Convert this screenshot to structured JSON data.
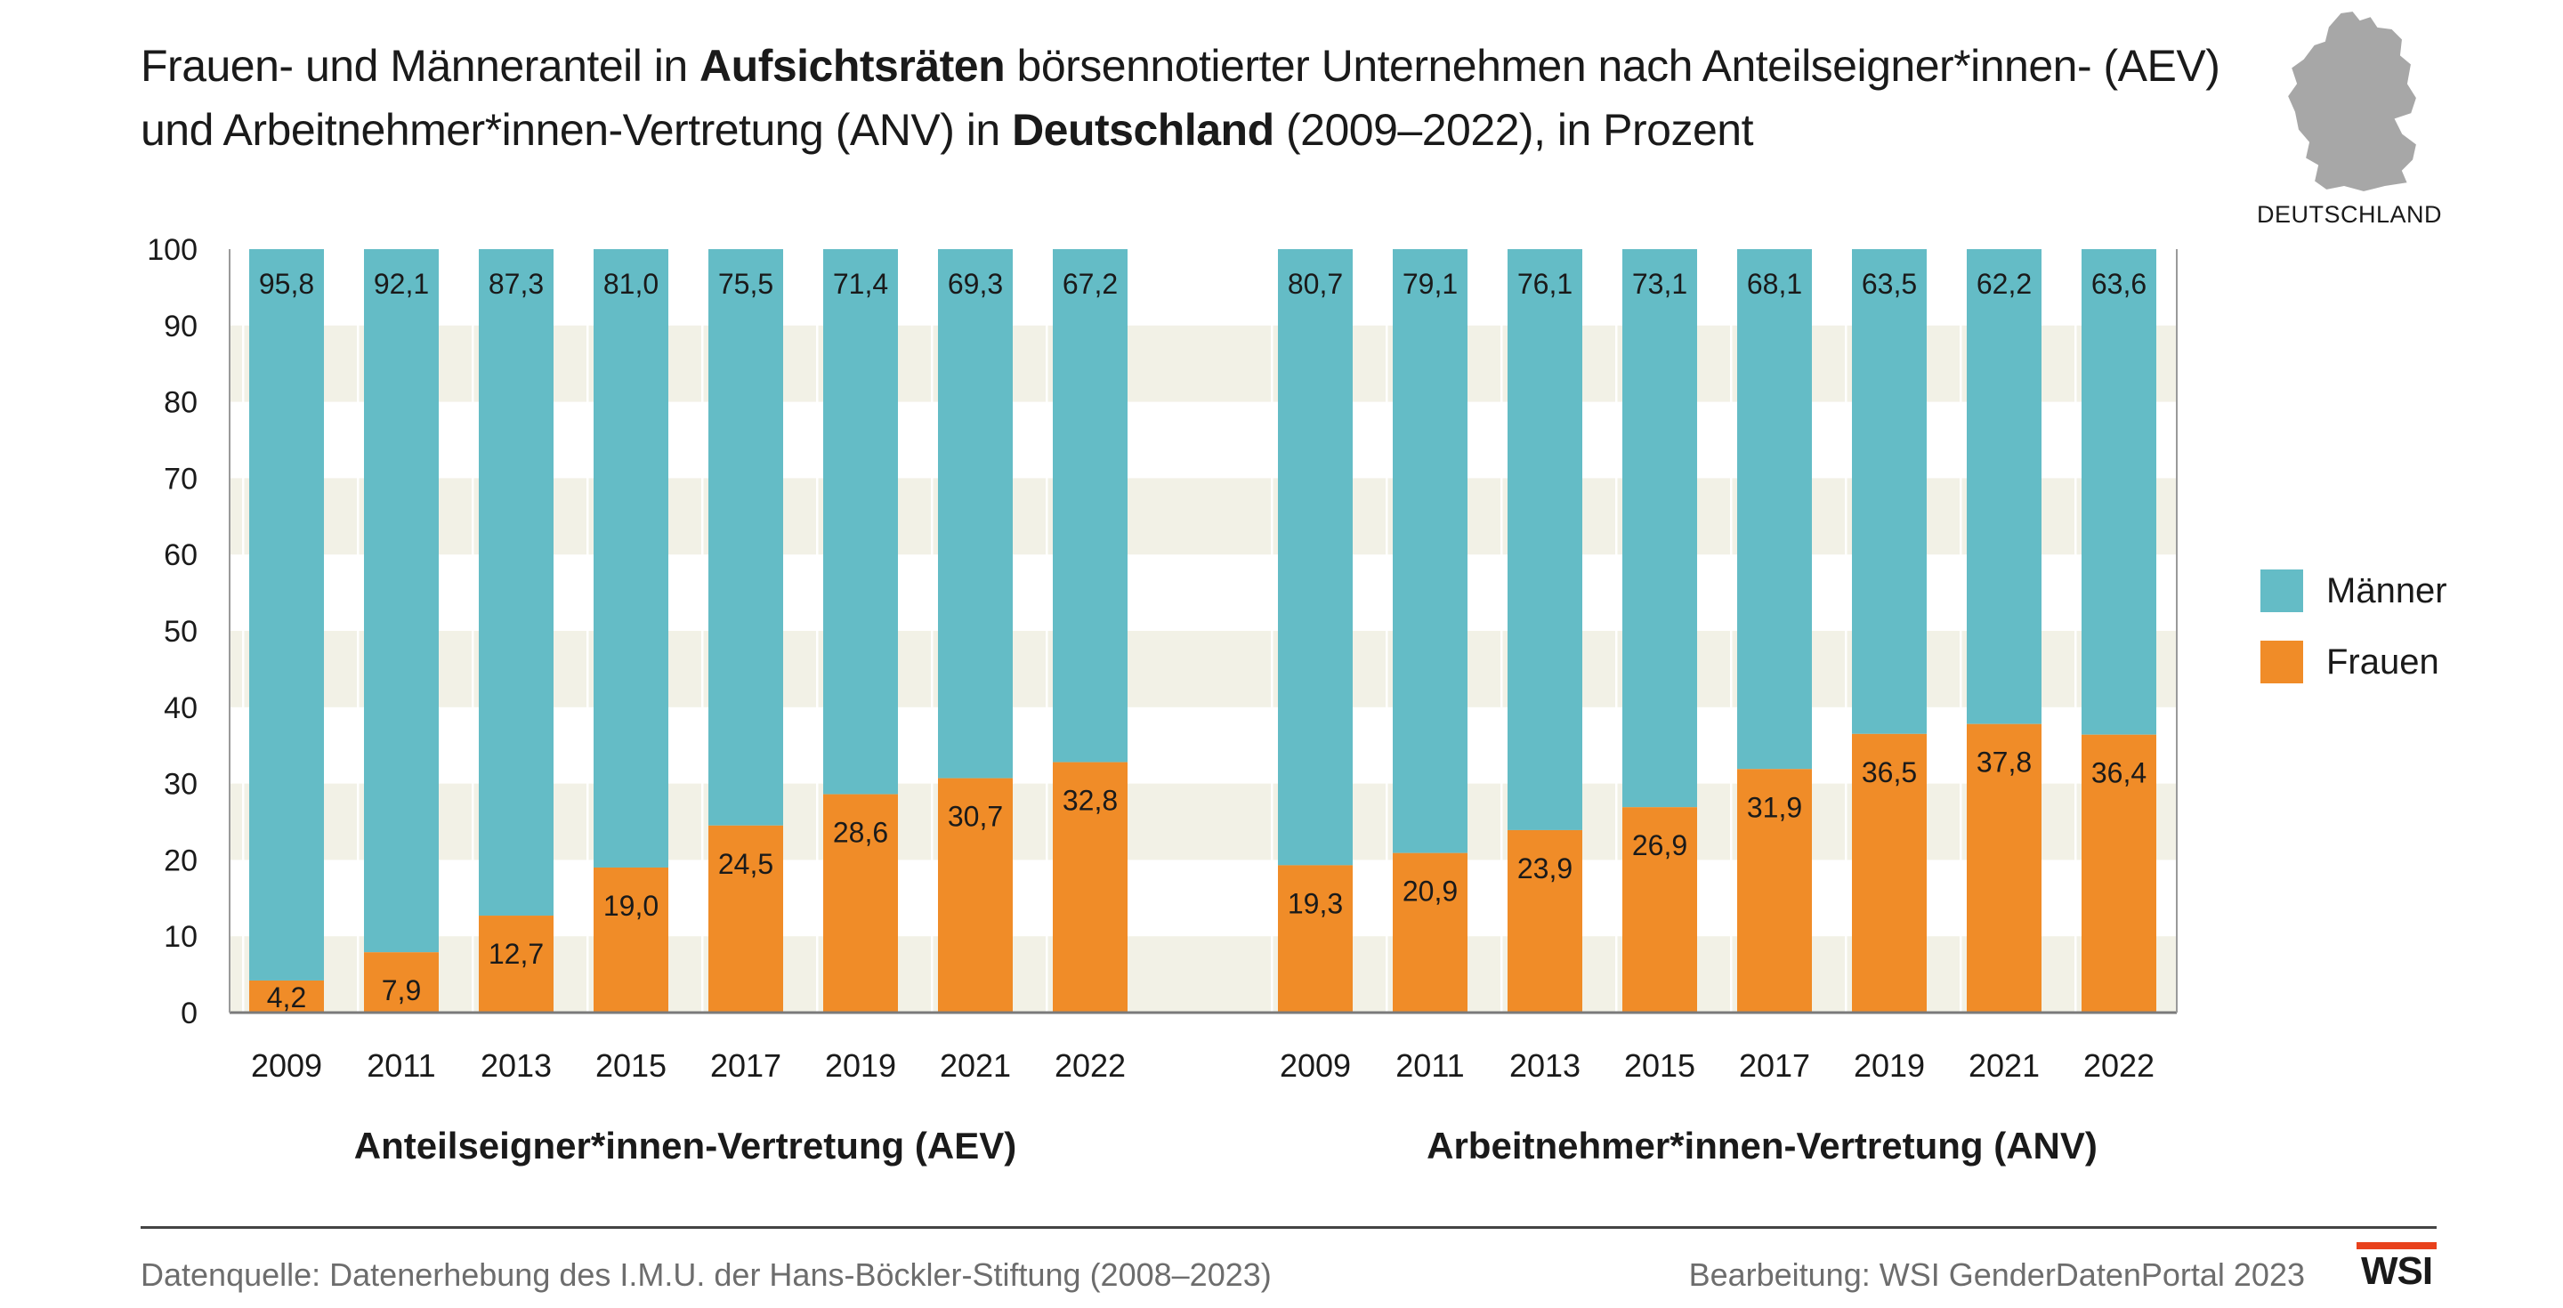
{
  "title": {
    "line1_part1": "Frauen- und Männeranteil in ",
    "line1_bold": "Aufsichtsräten",
    "line1_part2": " börsennotierter Unternehmen nach Anteilseigner*innen- (AEV)",
    "line2_part1": "und Arbeitnehmer*innen-Vertretung (ANV) in ",
    "line2_bold": "Deutschland",
    "line2_part2": " (2009–2022), in Prozent"
  },
  "map": {
    "label": "DEUTSCHLAND",
    "icon": "germany-map-icon"
  },
  "legend": {
    "maenner": "Männer",
    "frauen": "Frauen"
  },
  "colors": {
    "maenner": "#64bcc6",
    "frauen": "#f08c28",
    "band": "#f2f1e6"
  },
  "chart_data": {
    "type": "bar",
    "stacked": true,
    "ylim": [
      0,
      100
    ],
    "yticks": [
      0,
      10,
      20,
      30,
      40,
      50,
      60,
      70,
      80,
      90,
      100
    ],
    "legend_position": "right",
    "groups": [
      {
        "label": "Anteilseigner*innen-Vertretung (AEV)",
        "categories": [
          "2009",
          "2011",
          "2013",
          "2015",
          "2017",
          "2019",
          "2021",
          "2022"
        ],
        "series": [
          {
            "name": "Männer",
            "values": [
              "95,8",
              "92,1",
              "87,3",
              "81,0",
              "75,5",
              "71,4",
              "69,3",
              "67,2"
            ]
          },
          {
            "name": "Frauen",
            "values": [
              "4,2",
              "7,9",
              "12,7",
              "19,0",
              "24,5",
              "28,6",
              "30,7",
              "32,8"
            ]
          }
        ]
      },
      {
        "label": "Arbeitnehmer*innen-Vertretung (ANV)",
        "categories": [
          "2009",
          "2011",
          "2013",
          "2015",
          "2017",
          "2019",
          "2021",
          "2022"
        ],
        "series": [
          {
            "name": "Männer",
            "values": [
              "80,7",
              "79,1",
              "76,1",
              "73,1",
              "68,1",
              "63,5",
              "62,2",
              "63,6"
            ]
          },
          {
            "name": "Frauen",
            "values": [
              "19,3",
              "20,9",
              "23,9",
              "26,9",
              "31,9",
              "36,5",
              "37,8",
              "36,4"
            ]
          }
        ]
      }
    ]
  },
  "footer": {
    "source": "Datenquelle: Datenerhebung des I.M.U. der Hans-Böckler-Stiftung (2008–2023)",
    "credit": "Bearbeitung: WSI GenderDatenPortal 2023",
    "logo": "WSI"
  }
}
